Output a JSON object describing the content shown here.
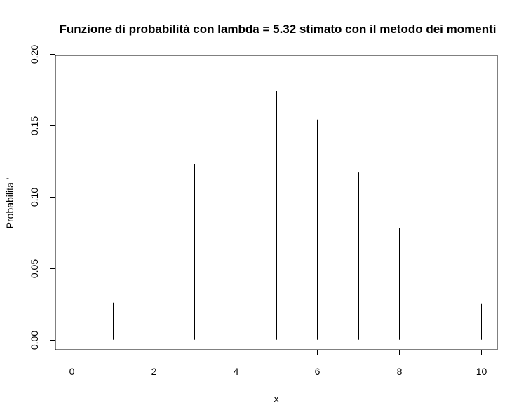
{
  "chart_data": {
    "type": "bar",
    "title": "Funzione di probabilità con lambda = 5.32 stimato con il metodo dei momenti",
    "xlabel": "x",
    "ylabel": "Probabilita '",
    "x": [
      0,
      1,
      2,
      3,
      4,
      5,
      6,
      7,
      8,
      9,
      10
    ],
    "values": [
      0.005,
      0.026,
      0.069,
      0.123,
      0.163,
      0.174,
      0.154,
      0.117,
      0.078,
      0.046,
      0.025
    ],
    "xlim": [
      -0.4,
      10.4
    ],
    "ylim": [
      -0.007,
      0.199
    ],
    "xticks": [
      "0",
      "2",
      "4",
      "6",
      "8",
      "10"
    ],
    "yticks": [
      "0.00",
      "0.05",
      "0.10",
      "0.15",
      "0.20"
    ],
    "grid": false,
    "colors": {
      "bars": "#000000",
      "axis": "#000000",
      "background": "#ffffff"
    }
  }
}
